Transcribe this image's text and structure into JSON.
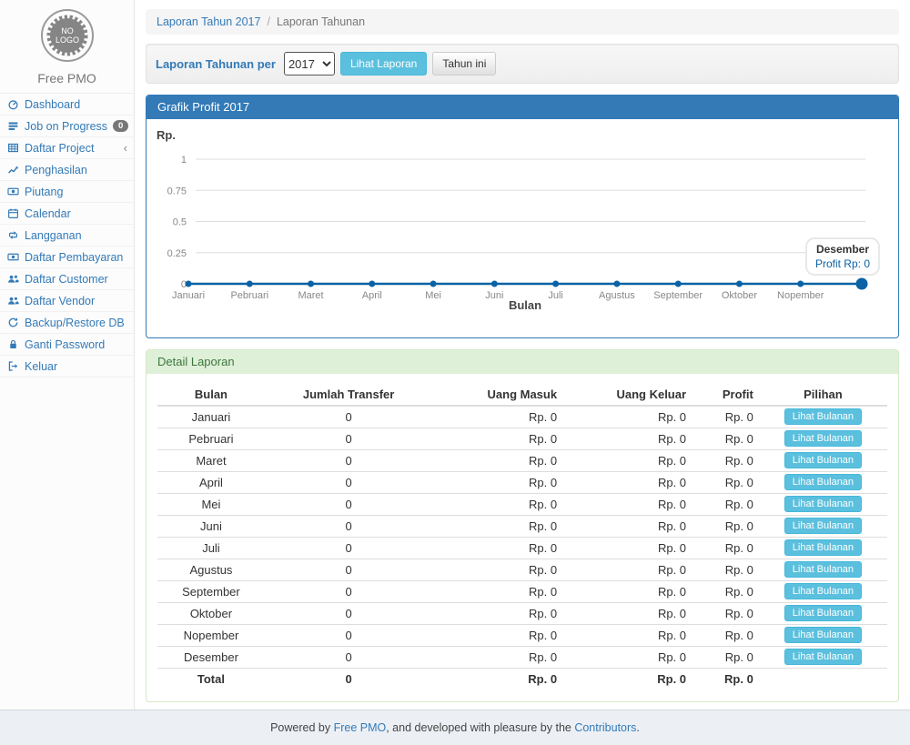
{
  "brand": {
    "logo_line1": "NO",
    "logo_line2": "LOGO",
    "name": "Free PMO"
  },
  "sidebar": {
    "items": [
      {
        "icon": "dashboard",
        "label": "Dashboard"
      },
      {
        "icon": "tasks",
        "label": "Job on Progress",
        "badge": "0"
      },
      {
        "icon": "table",
        "label": "Daftar Project",
        "chevron": "‹"
      },
      {
        "icon": "line-chart",
        "label": "Penghasilan"
      },
      {
        "icon": "money",
        "label": "Piutang"
      },
      {
        "icon": "calendar",
        "label": "Calendar"
      },
      {
        "icon": "retweet",
        "label": "Langganan"
      },
      {
        "icon": "money",
        "label": "Daftar Pembayaran"
      },
      {
        "icon": "users",
        "label": "Daftar Customer"
      },
      {
        "icon": "users",
        "label": "Daftar Vendor"
      },
      {
        "icon": "refresh",
        "label": "Backup/Restore DB"
      },
      {
        "icon": "lock",
        "label": "Ganti Password"
      },
      {
        "icon": "sign-out",
        "label": "Keluar"
      }
    ]
  },
  "breadcrumb": {
    "link": "Laporan Tahun 2017",
    "separator": "/",
    "current": "Laporan Tahunan"
  },
  "toolbar": {
    "label": "Laporan Tahunan per",
    "year_value": "2017",
    "view_button": "Lihat Laporan",
    "this_year_button": "Tahun ini"
  },
  "chart_panel": {
    "title": "Grafik Profit 2017"
  },
  "chart_data": {
    "type": "line",
    "title": "Grafik Profit 2017",
    "x": [
      "Januari",
      "Pebruari",
      "Maret",
      "April",
      "Mei",
      "Juni",
      "Juli",
      "Agustus",
      "September",
      "Oktober",
      "Nopember",
      "Desember"
    ],
    "series": [
      {
        "name": "Profit",
        "values": [
          0,
          0,
          0,
          0,
          0,
          0,
          0,
          0,
          0,
          0,
          0,
          0
        ]
      }
    ],
    "ylabel": "Rp.",
    "xlabel": "Bulan",
    "ylim": [
      0,
      1
    ],
    "yticks": [
      0,
      0.25,
      0.5,
      0.75,
      1
    ],
    "grid": true,
    "legend": "none",
    "line_color": "#0b62a4",
    "hovered_index": 11,
    "tooltip": {
      "title": "Desember",
      "value": "Profit Rp: 0"
    }
  },
  "detail_panel": {
    "title": "Detail Laporan",
    "table": {
      "headers": [
        "Bulan",
        "Jumlah Transfer",
        "Uang Masuk",
        "Uang Keluar",
        "Profit",
        "Pilihan"
      ],
      "action_label": "Lihat Bulanan",
      "rows": [
        {
          "bulan": "Januari",
          "jumlah_transfer": "0",
          "uang_masuk": "Rp. 0",
          "uang_keluar": "Rp. 0",
          "profit": "Rp. 0"
        },
        {
          "bulan": "Pebruari",
          "jumlah_transfer": "0",
          "uang_masuk": "Rp. 0",
          "uang_keluar": "Rp. 0",
          "profit": "Rp. 0"
        },
        {
          "bulan": "Maret",
          "jumlah_transfer": "0",
          "uang_masuk": "Rp. 0",
          "uang_keluar": "Rp. 0",
          "profit": "Rp. 0"
        },
        {
          "bulan": "April",
          "jumlah_transfer": "0",
          "uang_masuk": "Rp. 0",
          "uang_keluar": "Rp. 0",
          "profit": "Rp. 0"
        },
        {
          "bulan": "Mei",
          "jumlah_transfer": "0",
          "uang_masuk": "Rp. 0",
          "uang_keluar": "Rp. 0",
          "profit": "Rp. 0"
        },
        {
          "bulan": "Juni",
          "jumlah_transfer": "0",
          "uang_masuk": "Rp. 0",
          "uang_keluar": "Rp. 0",
          "profit": "Rp. 0"
        },
        {
          "bulan": "Juli",
          "jumlah_transfer": "0",
          "uang_masuk": "Rp. 0",
          "uang_keluar": "Rp. 0",
          "profit": "Rp. 0"
        },
        {
          "bulan": "Agustus",
          "jumlah_transfer": "0",
          "uang_masuk": "Rp. 0",
          "uang_keluar": "Rp. 0",
          "profit": "Rp. 0"
        },
        {
          "bulan": "September",
          "jumlah_transfer": "0",
          "uang_masuk": "Rp. 0",
          "uang_keluar": "Rp. 0",
          "profit": "Rp. 0"
        },
        {
          "bulan": "Oktober",
          "jumlah_transfer": "0",
          "uang_masuk": "Rp. 0",
          "uang_keluar": "Rp. 0",
          "profit": "Rp. 0"
        },
        {
          "bulan": "Nopember",
          "jumlah_transfer": "0",
          "uang_masuk": "Rp. 0",
          "uang_keluar": "Rp. 0",
          "profit": "Rp. 0"
        },
        {
          "bulan": "Desember",
          "jumlah_transfer": "0",
          "uang_masuk": "Rp. 0",
          "uang_keluar": "Rp. 0",
          "profit": "Rp. 0"
        }
      ],
      "total": {
        "bulan": "Total",
        "jumlah_transfer": "0",
        "uang_masuk": "Rp. 0",
        "uang_keluar": "Rp. 0",
        "profit": "Rp. 0"
      }
    }
  },
  "footer": {
    "text_before": "Powered by ",
    "link1": "Free PMO",
    "text_middle": ", and developed with pleasure by the ",
    "link2": "Contributors",
    "text_after": "."
  },
  "colors": {
    "accent_blue": "#337ab7",
    "info_button": "#5bc0de",
    "panel_success_bg": "#dff0d8",
    "panel_success_text": "#3c763d",
    "chart_line": "#0b62a4",
    "badge_gray": "#777777"
  }
}
